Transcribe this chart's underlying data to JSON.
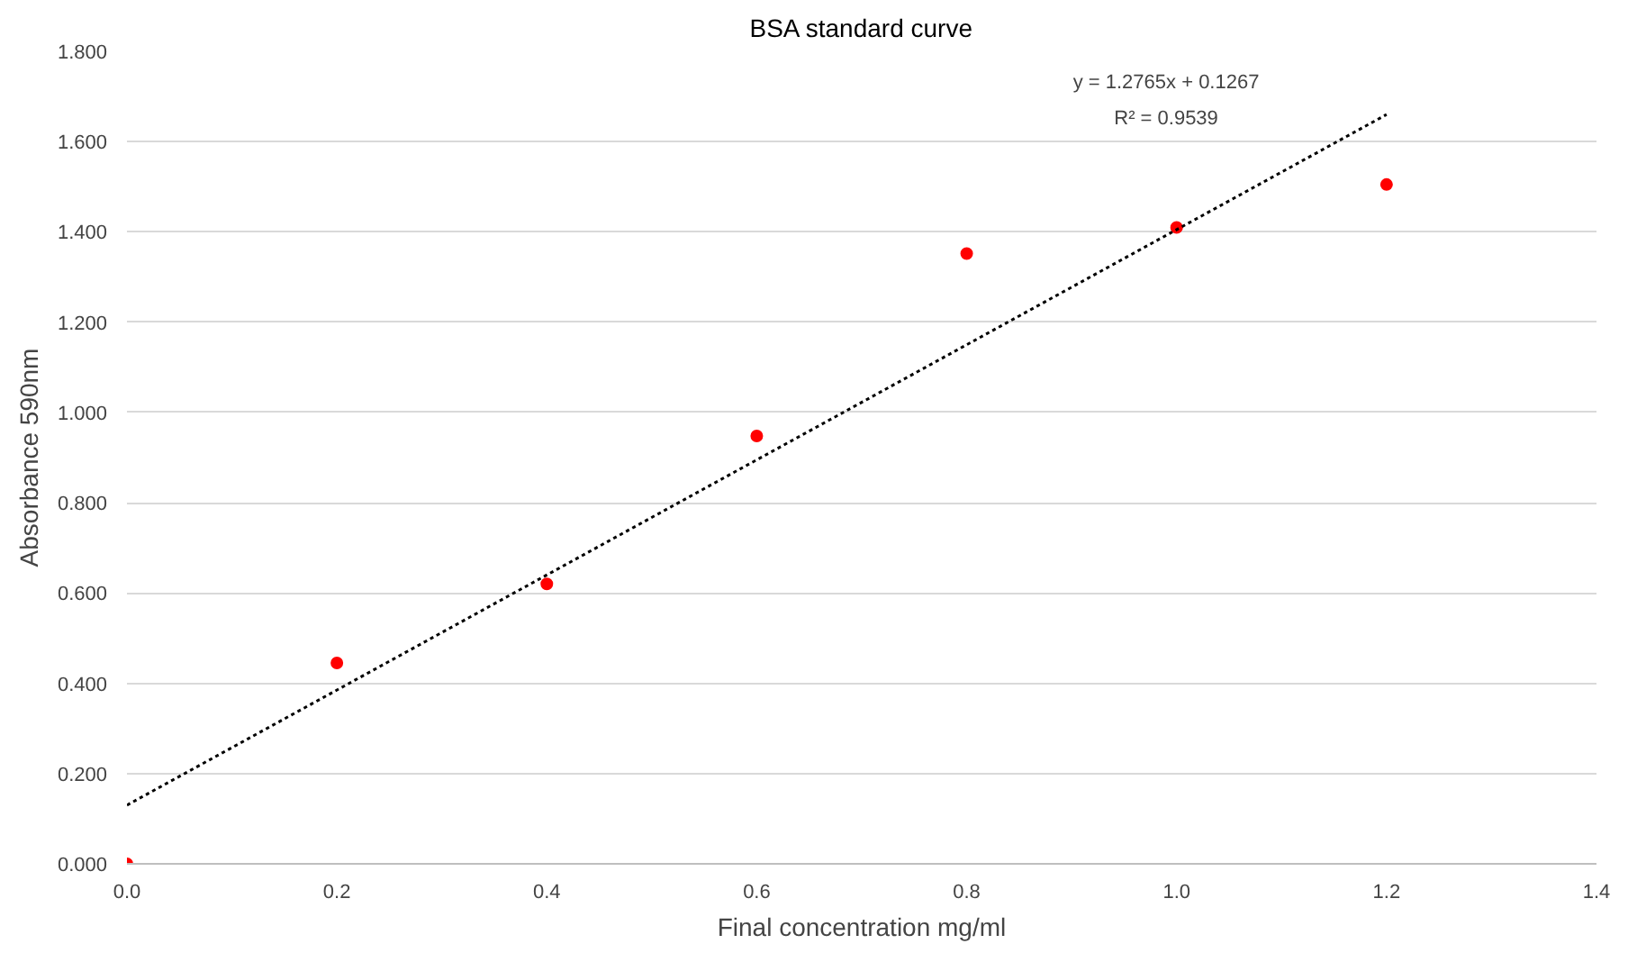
{
  "chart_data": {
    "type": "scatter",
    "title": "BSA standard curve",
    "xlabel": "Final concentration mg/ml",
    "ylabel": "Absorbance 590nm",
    "series": [
      {
        "color": "#ff0000",
        "marker": "circle",
        "x": [
          0.0,
          0.2,
          0.4,
          0.6,
          0.8,
          1.0,
          1.2
        ],
        "values": [
          0.0,
          0.445,
          0.62,
          0.948,
          1.352,
          1.41,
          1.505
        ]
      },
      {
        "type": "line",
        "color": "#000000",
        "line_style": "dotted",
        "marker": "none",
        "x": [
          0.0,
          1.2
        ],
        "values": [
          0.13,
          1.66
        ]
      }
    ],
    "annotations": [
      "y = 1.2765x + 0.1267",
      "R² = 0.9539"
    ],
    "xlim": [
      0.0,
      1.4
    ],
    "xticks": [
      {
        "value": 0,
        "label": "0.0"
      },
      {
        "value": 0.2,
        "label": "0.2"
      },
      {
        "value": 0.4,
        "label": "0.4"
      },
      {
        "value": 0.6,
        "label": "0.6"
      },
      {
        "value": 0.8,
        "label": "0.8"
      },
      {
        "value": 1.0,
        "label": "1.0"
      },
      {
        "value": 1.2,
        "label": "1.2"
      },
      {
        "value": 1.4,
        "label": "1.4"
      }
    ],
    "ylim": [
      0.0,
      1.8
    ],
    "yticks": [
      {
        "value": 0,
        "label": "0.000"
      },
      {
        "value": 0.2,
        "label": "0.200"
      },
      {
        "value": 0.4,
        "label": "0.400"
      },
      {
        "value": 0.6,
        "label": "0.600"
      },
      {
        "value": 0.8,
        "label": "0.800"
      },
      {
        "value": 1.0,
        "label": "1.000"
      },
      {
        "value": 1.2,
        "label": "1.200"
      },
      {
        "value": 1.4,
        "label": "1.400"
      },
      {
        "value": 1.6,
        "label": "1.600"
      },
      {
        "value": 1.8,
        "label": "1.800"
      }
    ],
    "grid": "y"
  }
}
